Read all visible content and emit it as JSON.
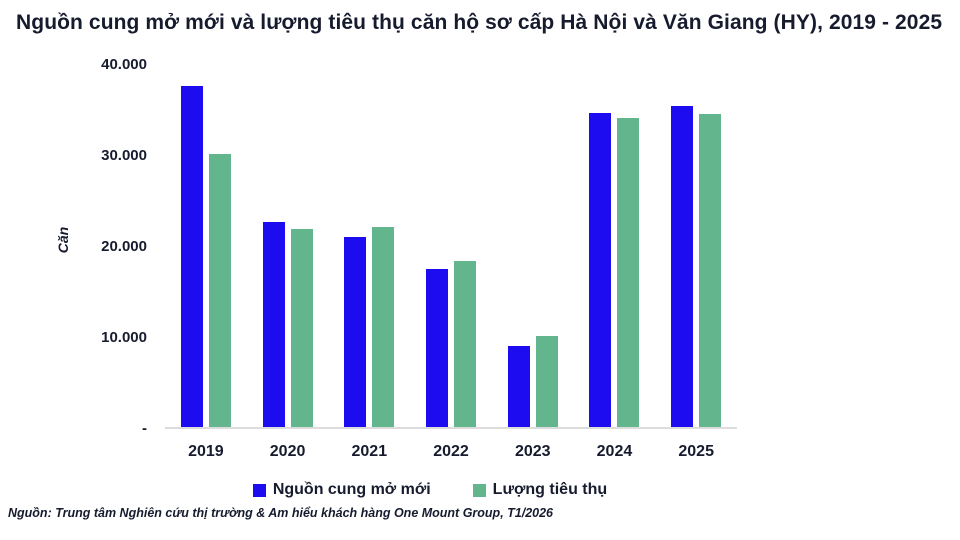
{
  "title": "Nguồn cung mở mới và lượng tiêu thụ căn hộ sơ cấp Hà Nội và Văn Giang (HY), 2019 - 2025",
  "source_note": "Nguồn: Trung tâm Nghiên cứu thị trường & Am hiểu khách hàng One Mount Group, T1/2026",
  "y_axis": {
    "title": "Căn",
    "tick_labels": [
      "40.000",
      "30.000",
      "20.000",
      "10.000",
      "-"
    ],
    "tick_values": [
      40000,
      30000,
      20000,
      10000,
      0
    ]
  },
  "legend": {
    "items": [
      {
        "label": "Nguồn cung mở mới",
        "color": "#1e0cf0"
      },
      {
        "label": "Lượng tiêu thụ",
        "color": "#63b58d"
      }
    ],
    "position": "bottom"
  },
  "colors": {
    "bar_blue": "#1e0cf0",
    "bar_green": "#63b58d",
    "axis_line": "#dcdcdc",
    "text": "#161b2e"
  },
  "chart_data": {
    "type": "bar",
    "title": "Nguồn cung mở mới và lượng tiêu thụ căn hộ sơ cấp Hà Nội và Văn Giang (HY), 2019 - 2025",
    "categories": [
      "2019",
      "2020",
      "2021",
      "2022",
      "2023",
      "2024",
      "2025"
    ],
    "series": [
      {
        "name": "Nguồn cung mở mới",
        "color": "#1e0cf0",
        "values": [
          37500,
          22500,
          20900,
          17400,
          8900,
          34500,
          35300
        ]
      },
      {
        "name": "Lượng tiêu thụ",
        "color": "#63b58d",
        "values": [
          30000,
          21800,
          22000,
          18200,
          10000,
          34000,
          34400
        ]
      }
    ],
    "xlabel": "",
    "ylabel": "Căn",
    "ylim": [
      0,
      40000
    ],
    "grid": false,
    "legend_position": "bottom"
  }
}
